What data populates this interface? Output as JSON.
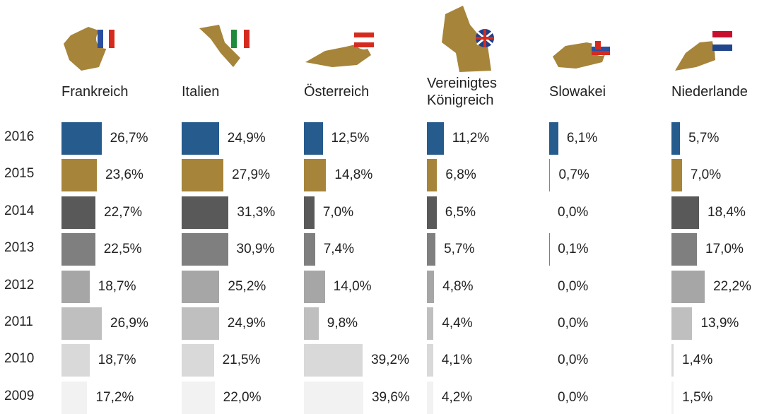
{
  "chart_data": {
    "type": "bar",
    "orientation": "horizontal",
    "categories": [
      "2016",
      "2015",
      "2014",
      "2013",
      "2012",
      "2011",
      "2010",
      "2009"
    ],
    "colors": [
      "#265b8d",
      "#a6843a",
      "#595959",
      "#7f7f7f",
      "#a6a6a6",
      "#bfbfbf",
      "#d9d9d9",
      "#f2f2f2"
    ],
    "series": [
      {
        "name": "Frankreich",
        "values": [
          26.7,
          23.6,
          22.7,
          22.5,
          18.7,
          26.9,
          18.7,
          17.2
        ],
        "value_labels": [
          "26,7%",
          "23,6%",
          "22,7%",
          "22,5%",
          "18,7%",
          "26,9%",
          "18,7%",
          "17,2%"
        ]
      },
      {
        "name": "Italien",
        "values": [
          24.9,
          27.9,
          31.3,
          30.9,
          25.2,
          24.9,
          21.5,
          22.0
        ],
        "value_labels": [
          "24,9%",
          "27,9%",
          "31,3%",
          "30,9%",
          "25,2%",
          "24,9%",
          "21,5%",
          "22,0%"
        ]
      },
      {
        "name": "Österreich",
        "values": [
          12.5,
          14.8,
          7.0,
          7.4,
          14.0,
          9.8,
          39.2,
          39.6
        ],
        "value_labels": [
          "12,5%",
          "14,8%",
          "7,0%",
          "7,4%",
          "14,0%",
          "9,8%",
          "39,2%",
          "39,6%"
        ]
      },
      {
        "name": "Vereinigtes Königreich",
        "values": [
          11.2,
          6.8,
          6.5,
          5.7,
          4.8,
          4.4,
          4.1,
          4.2
        ],
        "value_labels": [
          "11,2%",
          "6,8%",
          "6,5%",
          "5,7%",
          "4,8%",
          "4,4%",
          "4,1%",
          "4,2%"
        ]
      },
      {
        "name": "Slowakei",
        "values": [
          6.1,
          0.7,
          0.0,
          0.1,
          0.0,
          0.0,
          0.0,
          0.0
        ],
        "value_labels": [
          "6,1%",
          "0,7%",
          "0,0%",
          "0,1%",
          "0,0%",
          "0,0%",
          "0,0%",
          "0,0%"
        ]
      },
      {
        "name": "Niederlande",
        "values": [
          5.7,
          7.0,
          18.4,
          17.0,
          22.2,
          13.9,
          1.4,
          1.5
        ],
        "value_labels": [
          "5,7%",
          "7,0%",
          "18,4%",
          "17,0%",
          "22,2%",
          "13,9%",
          "1,4%",
          "1,5%"
        ]
      }
    ]
  }
}
